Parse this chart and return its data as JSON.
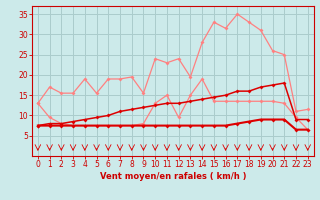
{
  "x": [
    0,
    1,
    2,
    3,
    4,
    5,
    6,
    7,
    8,
    9,
    10,
    11,
    12,
    13,
    14,
    15,
    16,
    17,
    18,
    19,
    20,
    21,
    22,
    23
  ],
  "line_light1": [
    13,
    17,
    15.5,
    15.5,
    19,
    15.5,
    19,
    19,
    19.5,
    15.5,
    24,
    23,
    24,
    19.5,
    28,
    33,
    31.5,
    35,
    33,
    31,
    26,
    25,
    11,
    11.5
  ],
  "line_light2": [
    13,
    9.5,
    8,
    7.5,
    7.5,
    7.5,
    7.5,
    7.5,
    7.5,
    8,
    13,
    15,
    9.5,
    15,
    19,
    13.5,
    13.5,
    13.5,
    13.5,
    13.5,
    13.5,
    13,
    9.5,
    6.5
  ],
  "line_dark1": [
    7.5,
    8,
    8,
    8.5,
    9,
    9.5,
    10,
    11,
    11.5,
    12,
    12.5,
    13,
    13,
    13.5,
    14,
    14.5,
    15,
    16,
    16,
    17,
    17.5,
    18,
    9,
    9
  ],
  "line_dark2": [
    7.5,
    7.5,
    7.5,
    7.5,
    7.5,
    7.5,
    7.5,
    7.5,
    7.5,
    7.5,
    7.5,
    7.5,
    7.5,
    7.5,
    7.5,
    7.5,
    7.5,
    8,
    8.5,
    9,
    9,
    9,
    6.5,
    6.5
  ],
  "bg_color": "#cceaea",
  "grid_color": "#aacccc",
  "line_light_color": "#ff8080",
  "line_dark_color": "#dd0000",
  "xlabel": "Vent moyen/en rafales ( km/h )",
  "ylim": [
    0,
    37
  ],
  "xlim": [
    -0.5,
    23.5
  ],
  "yticks": [
    5,
    10,
    15,
    20,
    25,
    30,
    35
  ],
  "xticks": [
    0,
    1,
    2,
    3,
    4,
    5,
    6,
    7,
    8,
    9,
    10,
    11,
    12,
    13,
    14,
    15,
    16,
    17,
    18,
    19,
    20,
    21,
    22,
    23
  ],
  "tick_color": "#cc0000",
  "label_fontsize": 5.5,
  "xlabel_fontsize": 6
}
